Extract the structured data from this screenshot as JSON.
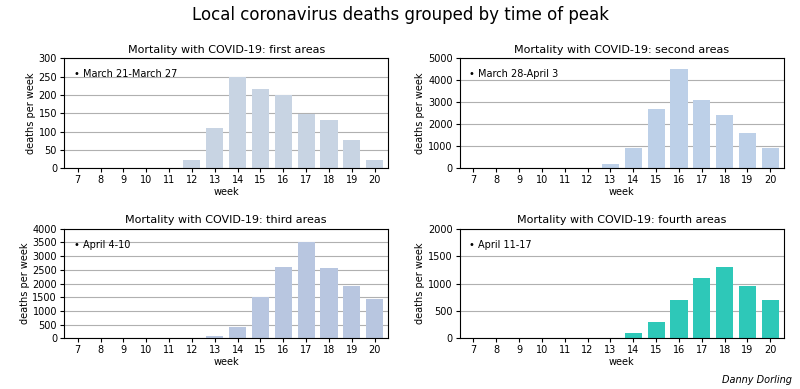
{
  "title": "Local coronavirus deaths grouped by time of peak",
  "annotation": "Danny Dorling",
  "chart_data": [
    {
      "type": "bar",
      "title": "Mortality with COVID-19: first areas",
      "annotation": "• March 21-March 27",
      "x_label": "week",
      "y_label": "deaths per week",
      "color": "#c8d4e3",
      "x": [
        7,
        8,
        9,
        10,
        11,
        12,
        13,
        14,
        15,
        16,
        17,
        18,
        19,
        20
      ],
      "values": [
        0,
        0,
        0,
        0,
        0,
        22,
        110,
        248,
        215,
        200,
        148,
        132,
        78,
        22
      ],
      "xlim": [
        6.4,
        20.6
      ],
      "xticks": [
        7,
        8,
        9,
        10,
        11,
        12,
        13,
        14,
        15,
        16,
        17,
        18,
        19,
        20
      ],
      "ylim": [
        0,
        300
      ],
      "yticks": [
        0,
        50,
        100,
        150,
        200,
        250,
        300
      ],
      "grid": true
    },
    {
      "type": "bar",
      "title": "Mortality with COVID-19: second areas",
      "annotation": "• March 28-April 3",
      "x_label": "week",
      "y_label": "deaths per week",
      "color": "#bdd0e8",
      "x": [
        7,
        8,
        9,
        10,
        11,
        12,
        13,
        14,
        15,
        16,
        17,
        18,
        19,
        20
      ],
      "values": [
        0,
        0,
        0,
        0,
        0,
        0,
        200,
        900,
        2700,
        4500,
        3100,
        2400,
        1600,
        900
      ],
      "xlim": [
        6.4,
        20.6
      ],
      "xticks": [
        7,
        8,
        9,
        10,
        11,
        12,
        13,
        14,
        15,
        16,
        17,
        18,
        19,
        20
      ],
      "ylim": [
        0,
        5000
      ],
      "yticks": [
        0,
        1000,
        2000,
        3000,
        4000,
        5000
      ],
      "grid": true
    },
    {
      "type": "bar",
      "title": "Mortality with COVID-19: third areas",
      "annotation": "• April 4-10",
      "x_label": "week",
      "y_label": "deaths per week",
      "color": "#b8c6e0",
      "x": [
        7,
        8,
        9,
        10,
        11,
        12,
        13,
        14,
        15,
        16,
        17,
        18,
        19,
        20
      ],
      "values": [
        0,
        0,
        0,
        0,
        0,
        0,
        100,
        400,
        1500,
        2600,
        3500,
        2550,
        1900,
        1450
      ],
      "xlim": [
        6.4,
        20.6
      ],
      "xticks": [
        7,
        8,
        9,
        10,
        11,
        12,
        13,
        14,
        15,
        16,
        17,
        18,
        19,
        20
      ],
      "ylim": [
        0,
        4000
      ],
      "yticks": [
        0,
        500,
        1000,
        1500,
        2000,
        2500,
        3000,
        3500,
        4000
      ],
      "grid": true
    },
    {
      "type": "bar",
      "title": "Mortality with COVID-19: fourth areas",
      "annotation": "• April 11-17",
      "x_label": "week",
      "y_label": "deaths per week",
      "color": "#2ec8b8",
      "x": [
        7,
        8,
        9,
        10,
        11,
        12,
        13,
        14,
        15,
        16,
        17,
        18,
        19,
        20
      ],
      "values": [
        0,
        0,
        0,
        0,
        0,
        0,
        0,
        100,
        300,
        700,
        1100,
        1300,
        950,
        700
      ],
      "xlim": [
        6.4,
        20.6
      ],
      "xticks": [
        7,
        8,
        9,
        10,
        11,
        12,
        13,
        14,
        15,
        16,
        17,
        18,
        19,
        20
      ],
      "ylim": [
        0,
        2000
      ],
      "yticks": [
        0,
        500,
        1000,
        1500,
        2000
      ],
      "grid": true
    }
  ]
}
